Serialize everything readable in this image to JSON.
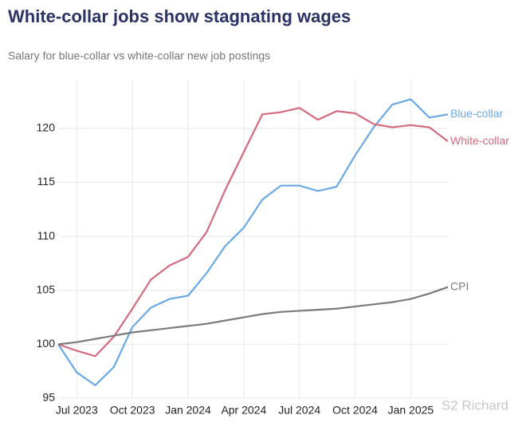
{
  "chart_data": {
    "type": "line",
    "title": "White-collar jobs show stagnating wages",
    "subtitle": "Salary for blue-collar vs white-collar new job postings",
    "watermark": "S2 Richard",
    "x": [
      "2023-06",
      "2023-07",
      "2023-08",
      "2023-09",
      "2023-10",
      "2023-11",
      "2023-12",
      "2024-01",
      "2024-02",
      "2024-03",
      "2024-04",
      "2024-05",
      "2024-06",
      "2024-07",
      "2024-08",
      "2024-09",
      "2024-10",
      "2024-11",
      "2024-12",
      "2025-01",
      "2025-02",
      "2025-03"
    ],
    "xlim": [
      "2023-06",
      "2025-03"
    ],
    "xticks": [
      {
        "value": "2023-07",
        "label": "Jul 2023"
      },
      {
        "value": "2023-10",
        "label": "Oct 2023"
      },
      {
        "value": "2024-01",
        "label": "Jan 2024"
      },
      {
        "value": "2024-04",
        "label": "Apr 2024"
      },
      {
        "value": "2024-07",
        "label": "Jul 2024"
      },
      {
        "value": "2024-10",
        "label": "Oct 2024"
      },
      {
        "value": "2025-01",
        "label": "Jan 2025"
      }
    ],
    "ylim": [
      95,
      124.5
    ],
    "yticks": [
      95,
      100,
      105,
      110,
      115,
      120
    ],
    "grid": true,
    "series": [
      {
        "name": "Blue-collar",
        "color": "#6aa9e4",
        "values": [
          100,
          97.4,
          96.2,
          97.9,
          101.6,
          103.4,
          104.2,
          104.5,
          106.6,
          109.1,
          110.8,
          113.4,
          114.7,
          114.7,
          114.2,
          114.6,
          117.5,
          120.1,
          122.2,
          122.7,
          121.0,
          121.3
        ]
      },
      {
        "name": "White-collar",
        "color": "#d46a7e",
        "values": [
          100,
          99.4,
          98.9,
          100.7,
          103.3,
          106.0,
          107.3,
          108.1,
          110.4,
          114.3,
          117.8,
          121.3,
          121.5,
          121.9,
          120.8,
          121.6,
          121.4,
          120.4,
          120.1,
          120.3,
          120.1,
          118.8
        ]
      },
      {
        "name": "CPI",
        "color": "#7a7a7a",
        "values": [
          100,
          100.2,
          100.5,
          100.8,
          101.1,
          101.3,
          101.5,
          101.7,
          101.9,
          102.2,
          102.5,
          102.8,
          103.0,
          103.1,
          103.2,
          103.3,
          103.5,
          103.7,
          103.9,
          104.2,
          104.7,
          105.3
        ]
      }
    ]
  }
}
